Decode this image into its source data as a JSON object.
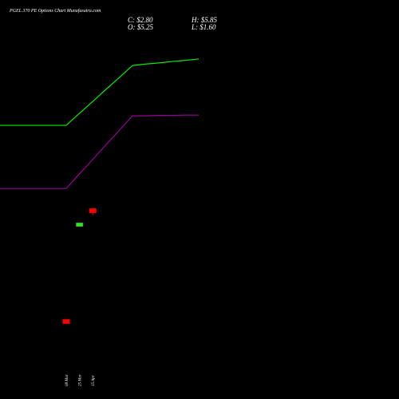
{
  "chart_data": {
    "type": "candlestick",
    "title": "PGEL 370 PE Options Chart Munafasutra.com",
    "stats": {
      "close": "C: $2.80",
      "open": "O: $5.25",
      "high": "H: $5.85",
      "low": "L: $1.60"
    },
    "categories": [
      null,
      null,
      null,
      null,
      null,
      "08 Mar",
      "25 Mar",
      "15 Apr",
      null,
      null,
      null,
      null,
      null,
      null,
      null,
      null
    ],
    "ylim": [
      0,
      10
    ],
    "up_color": "#22ee22",
    "down_color": "#ff0000",
    "open": [
      null,
      null,
      null,
      null,
      null,
      1.74,
      4.26,
      4.76,
      null,
      null,
      null,
      null,
      null,
      null,
      null,
      null
    ],
    "high": [
      null,
      null,
      null,
      null,
      null,
      1.74,
      4.37,
      4.76,
      null,
      null,
      null,
      null,
      null,
      null,
      null,
      null
    ],
    "low": [
      null,
      null,
      null,
      null,
      null,
      1.61,
      4.26,
      4.57,
      null,
      null,
      null,
      null,
      null,
      null,
      null,
      null
    ],
    "close": [
      null,
      null,
      null,
      null,
      null,
      1.61,
      4.37,
      4.63,
      null,
      null,
      null,
      null,
      null,
      null,
      null,
      null
    ],
    "lines": [
      {
        "color": "#00ee00",
        "values": [
          7.02,
          7.02,
          7.02,
          7.02,
          7.02,
          7.02,
          7.35,
          7.67,
          8.0,
          8.32,
          8.65,
          8.69,
          8.72,
          8.76,
          8.79,
          8.83
        ]
      },
      {
        "color": "#990099",
        "values": [
          5.3,
          5.3,
          5.3,
          5.3,
          5.3,
          5.3,
          5.7,
          6.09,
          6.49,
          6.88,
          7.28,
          7.28,
          7.29,
          7.29,
          7.3,
          7.3
        ]
      }
    ]
  }
}
